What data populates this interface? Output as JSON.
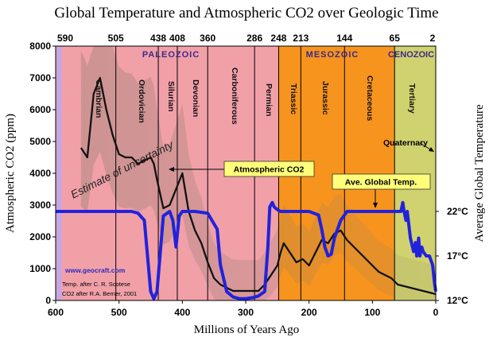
{
  "chart_data": {
    "type": "line",
    "title": "Global Temperature and Atmospheric CO2 over Geologic Time",
    "xlabel": "Millions of Years Ago",
    "ylabel": "Atmospheric CO2 (ppm)",
    "y2label": "Average Global Temperature",
    "xlim": [
      600,
      0
    ],
    "ylim": [
      0,
      8000
    ],
    "yticks": [
      "0",
      "1000",
      "2000",
      "3000",
      "4000",
      "5000",
      "6000",
      "7000",
      "8000"
    ],
    "xticks": [
      "600",
      "500",
      "400",
      "300",
      "200",
      "100",
      "0"
    ],
    "top_ticks": [
      "590",
      "505",
      "438",
      "408",
      "360",
      "286",
      "248",
      "213",
      "144",
      "65",
      "2"
    ],
    "temp_ticks": [
      "22°C",
      "17°C",
      "12°C"
    ],
    "eras": [
      {
        "label": "PALEOZOIC",
        "color": "#f1a0a8"
      },
      {
        "label": "MESOZOIC",
        "color": "#f7941e"
      },
      {
        "label": "CENOZOIC",
        "color": "#cfd26e"
      }
    ],
    "periods": [
      "Cambrian",
      "Ordovician",
      "Silurian",
      "Devonian",
      "Carboniferous",
      "Permian",
      "Triassic",
      "Jurassic",
      "Cretaceous",
      "Tertiary"
    ],
    "quaternary_label": "Quaternary",
    "uncertainty_label": "Estimate of uncertainty",
    "series": [
      {
        "name": "Atmospheric CO2",
        "color": "#111111",
        "x": [
          560,
          550,
          540,
          530,
          520,
          510,
          500,
          490,
          480,
          470,
          460,
          450,
          445,
          440,
          430,
          420,
          410,
          400,
          390,
          380,
          370,
          360,
          350,
          340,
          330,
          320,
          310,
          300,
          290,
          280,
          270,
          260,
          250,
          245,
          240,
          230,
          220,
          210,
          200,
          190,
          180,
          170,
          160,
          150,
          140,
          130,
          120,
          110,
          100,
          90,
          80,
          70,
          60,
          50,
          40,
          30,
          20,
          10,
          0
        ],
        "values": [
          4800,
          4500,
          6500,
          7000,
          6000,
          5200,
          4600,
          4500,
          4500,
          4300,
          4400,
          4500,
          4300,
          3800,
          2900,
          3000,
          3500,
          4000,
          2800,
          2200,
          1800,
          1200,
          700,
          500,
          400,
          300,
          300,
          300,
          300,
          300,
          500,
          800,
          1100,
          1500,
          1800,
          1500,
          1200,
          1300,
          1100,
          1500,
          1900,
          1800,
          2100,
          2200,
          1900,
          1700,
          1500,
          1300,
          1100,
          900,
          800,
          700,
          500,
          450,
          400,
          350,
          300,
          250,
          200
        ]
      },
      {
        "name": "Ave. Global Temp.",
        "color": "#2020e0",
        "x": [
          600,
          560,
          520,
          480,
          470,
          460,
          455,
          450,
          445,
          440,
          430,
          420,
          415,
          410,
          405,
          400,
          380,
          360,
          345,
          340,
          330,
          320,
          310,
          300,
          290,
          280,
          270,
          265,
          262,
          258,
          255,
          250,
          245,
          240,
          220,
          200,
          185,
          180,
          175,
          170,
          165,
          160,
          150,
          140,
          130,
          110,
          90,
          70,
          60,
          55,
          52,
          50,
          47,
          45,
          40,
          35,
          32,
          30,
          27,
          25,
          22,
          20,
          15,
          10,
          5,
          2,
          0
        ],
        "values": [
          22,
          22,
          22,
          22,
          21.8,
          21,
          17,
          13,
          12.2,
          13,
          21.5,
          22,
          21,
          18,
          21.5,
          22,
          22,
          21.8,
          20,
          16,
          13,
          12.4,
          12.2,
          12.2,
          12.3,
          12.5,
          13,
          18,
          22.5,
          23,
          22.5,
          22.2,
          22,
          22,
          22,
          22,
          21.6,
          20,
          18,
          17,
          17.2,
          19,
          21,
          22,
          22,
          22,
          22,
          22,
          22,
          22,
          23,
          22,
          21,
          22,
          19,
          17.5,
          18.5,
          17,
          19,
          17,
          18,
          17.5,
          17,
          17,
          16,
          14,
          13
        ]
      }
    ]
  },
  "labels": {
    "co2_box": "Atmospheric CO2",
    "temp_box": "Ave. Global Temp.",
    "url": "www.geocraft.com",
    "credit1": "Temp. after C. R. Scotese",
    "credit2": "CO2 after R.A. Berner, 2001"
  }
}
